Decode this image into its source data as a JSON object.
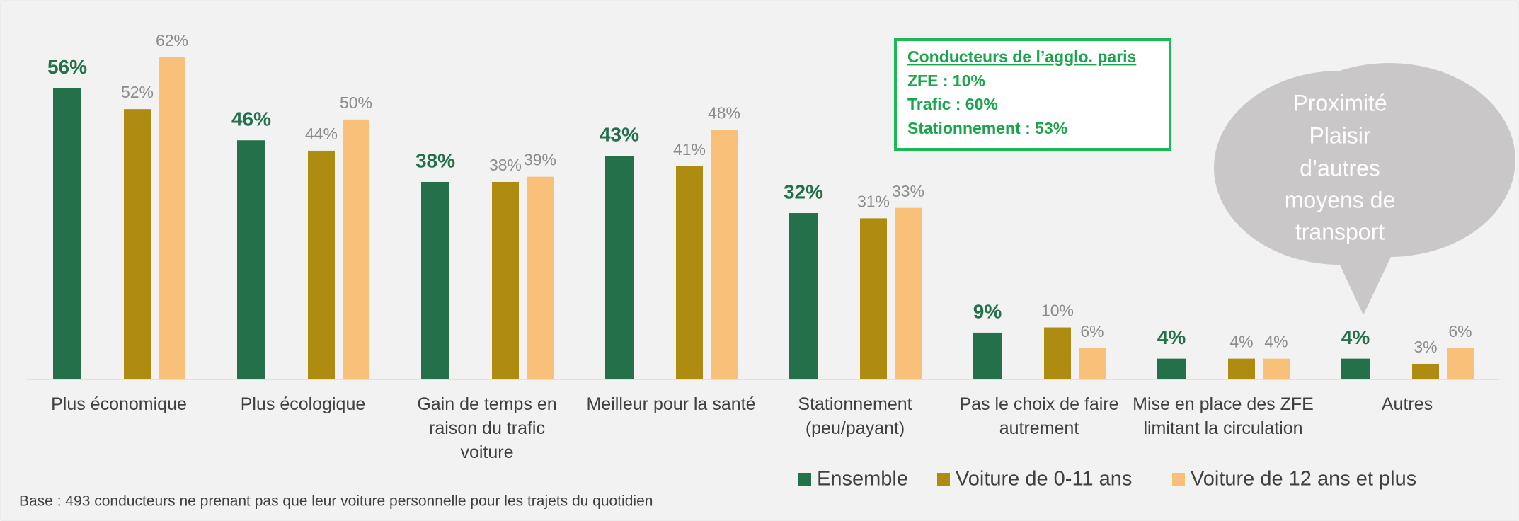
{
  "chart_data": {
    "type": "bar",
    "categories": [
      "Plus économique",
      "Plus écologique",
      "Gain de temps en\nraison du trafic\nvoiture",
      "Meilleur pour la santé",
      "Stationnement\n(peu/payant)",
      "Pas le choix de faire\nautrement",
      "Mise en place des ZFE\nlimitant la circulation",
      "Autres"
    ],
    "series": [
      {
        "name": "Ensemble",
        "color": "#23704a",
        "values": [
          56,
          46,
          38,
          43,
          32,
          9,
          4,
          4
        ],
        "value_labels": [
          "56%",
          "46%",
          "38%",
          "43%",
          "32%",
          "9%",
          "4%",
          "4%"
        ]
      },
      {
        "name": "Voiture de 0-11 ans",
        "color": "#ad8c10",
        "values": [
          52,
          44,
          38,
          41,
          31,
          10,
          4,
          3
        ],
        "value_labels": [
          "52%",
          "44%",
          "38%",
          "41%",
          "31%",
          "10%",
          "4%",
          "3%"
        ]
      },
      {
        "name": "Voiture de 12 ans et plus",
        "color": "#f9c07a",
        "values": [
          62,
          50,
          39,
          48,
          33,
          6,
          4,
          6
        ],
        "value_labels": [
          "62%",
          "50%",
          "39%",
          "48%",
          "33%",
          "6%",
          "4%",
          "6%"
        ]
      }
    ],
    "ylim": [
      0,
      70
    ],
    "annotations": {
      "box": {
        "title": "Conducteurs de l’agglo. paris",
        "lines": [
          "ZFE : 10%",
          "Trafic : 60%",
          "Stationnement : 53%"
        ]
      },
      "bubble": [
        "Proximité",
        "Plaisir",
        "d’autres",
        "moyens de",
        "transport"
      ]
    },
    "footnote": "Base : 493 conducteurs ne prenant pas que  leur voiture personnelle pour les trajets du quotidien"
  }
}
